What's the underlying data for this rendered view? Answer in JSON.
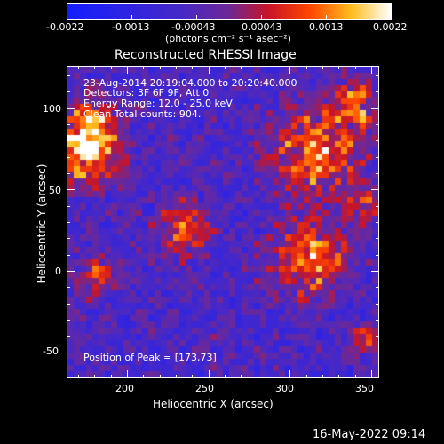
{
  "colorbar": {
    "tick_labels": [
      "-0.0022",
      "-0.0013",
      "-0.00043",
      "0.00043",
      "0.0013",
      "0.0022"
    ],
    "unit_label": "(photons cm⁻² s⁻¹ asec⁻²)",
    "range": [
      -0.0022,
      0.0022
    ]
  },
  "plot": {
    "title": "Reconstructed RHESSI Image",
    "annotations": [
      "23-Aug-2014 20:19:04.000 to 20:20:40.000",
      "Detectors: 3F 6F 9F, Att 0",
      "Energy Range: 12.0 - 25.0 keV",
      "Clean    Total counts: 904."
    ],
    "peak_label": "Position of Peak = [173,73]",
    "x_axis": {
      "label": "Heliocentric X (arcsec)",
      "range": [
        163,
        355
      ],
      "major_ticks": [
        200,
        250,
        300,
        350
      ],
      "tick_labels": [
        "200",
        "250",
        "300",
        "350"
      ]
    },
    "y_axis": {
      "label": "Heliocentric Y (arcsec)",
      "range": [
        -66,
        126
      ],
      "major_ticks": [
        -50,
        0,
        50,
        100
      ],
      "tick_labels": [
        "-50",
        "0",
        "50",
        "100"
      ]
    },
    "colors": {
      "low": "#2b1aff",
      "mid": "#6a2aa0",
      "high": "#ff2a10",
      "peak": "#fff6c0"
    }
  },
  "footer": {
    "timestamp": "16-May-2022 09:14"
  }
}
